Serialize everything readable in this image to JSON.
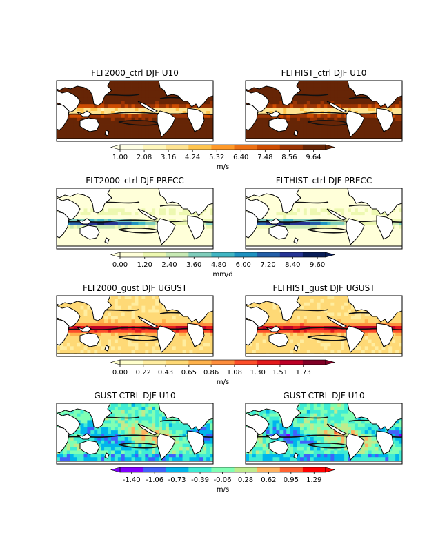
{
  "chart_data": {
    "type": "heatmap",
    "rows": [
      {
        "panels": [
          {
            "title": "FLT2000_ctrl DJF U10",
            "variable": "U10",
            "units": "m/s"
          },
          {
            "title": "FLTHIST_ctrl DJF U10",
            "variable": "U10",
            "units": "m/s"
          }
        ],
        "colorbar": {
          "cmap": "YlOrBr",
          "colors": [
            "#ffffe5",
            "#fff7bc",
            "#fee391",
            "#fec44f",
            "#fe9929",
            "#ec7014",
            "#cc4c02",
            "#993404",
            "#662506"
          ],
          "ticks": [
            "1.00",
            "2.08",
            "3.16",
            "4.24",
            "5.32",
            "6.40",
            "7.48",
            "8.56",
            "9.64"
          ],
          "label": "m/s",
          "range": [
            1.0,
            10.18
          ]
        }
      },
      {
        "panels": [
          {
            "title": "FLT2000_ctrl DJF PRECC",
            "variable": "PRECC",
            "units": "mm/d"
          },
          {
            "title": "FLTHIST_ctrl DJF PRECC",
            "variable": "PRECC",
            "units": "mm/d"
          }
        ],
        "colorbar": {
          "cmap": "YlGnBu",
          "colors": [
            "#ffffd9",
            "#edf8b1",
            "#c7e9b4",
            "#7fcdbb",
            "#41b6c4",
            "#1d91c0",
            "#225ea8",
            "#253494",
            "#081d58"
          ],
          "ticks": [
            "0.00",
            "1.20",
            "2.40",
            "3.60",
            "4.80",
            "6.00",
            "7.20",
            "8.40",
            "9.60"
          ],
          "label": "mm/d",
          "range": [
            0.0,
            10.0
          ]
        }
      },
      {
        "panels": [
          {
            "title": "FLT2000_gust DJF UGUST",
            "variable": "UGUST",
            "units": "m/s"
          },
          {
            "title": "FLTHIST_gust DJF UGUST",
            "variable": "UGUST",
            "units": "m/s"
          }
        ],
        "colorbar": {
          "cmap": "YlOrRd",
          "colors": [
            "#ffffcc",
            "#ffeda0",
            "#fed976",
            "#feb24c",
            "#fd8d3c",
            "#fc4e2a",
            "#e31a1c",
            "#bd0026",
            "#800026"
          ],
          "ticks": [
            "0.00",
            "0.22",
            "0.43",
            "0.65",
            "0.86",
            "1.08",
            "1.30",
            "1.51",
            "1.73"
          ],
          "label": "m/s",
          "range": [
            0.0,
            1.94
          ]
        }
      },
      {
        "panels": [
          {
            "title": "GUST-CTRL DJF U10",
            "variable": "U10 difference",
            "units": "m/s"
          },
          {
            "title": "GUST-CTRL DJF U10",
            "variable": "U10 difference",
            "units": "m/s"
          }
        ],
        "colorbar": {
          "cmap": "rainbow",
          "colors": [
            "#8000ff",
            "#4062fa",
            "#00b5eb",
            "#40ecd4",
            "#80ffb4",
            "#c0eb8d",
            "#ffb360",
            "#ff6232",
            "#ff0000"
          ],
          "ticks": [
            "-1.40",
            "-1.06",
            "-0.73",
            "-0.39",
            "-0.06",
            "0.28",
            "0.62",
            "0.95",
            "1.29"
          ],
          "label": "m/s",
          "range": [
            -1.57,
            1.46
          ]
        }
      }
    ]
  },
  "colors": {
    "land": "#ffffff",
    "coast": "#000000",
    "contour": "#111111",
    "background": "#ffffff"
  }
}
